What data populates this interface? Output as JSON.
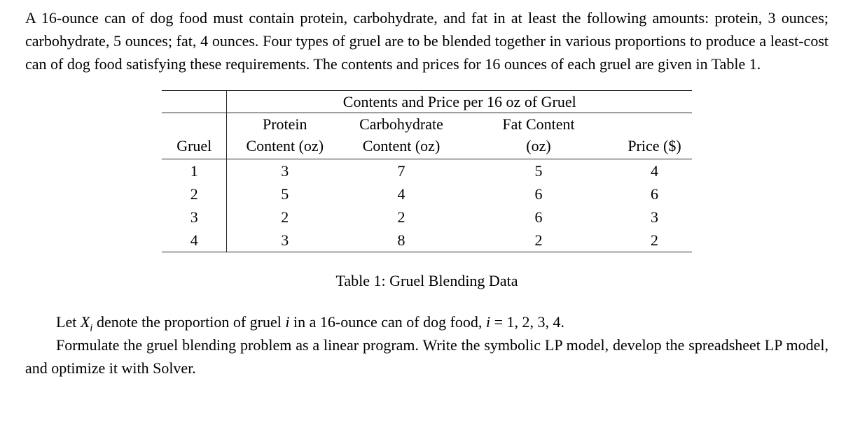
{
  "intro": "A 16-ounce can of dog food must contain protein, carbohydrate, and fat in at least the following amounts: protein, 3 ounces; carbohydrate, 5 ounces; fat, 4 ounces. Four types of gruel are to be blended together in various proportions to produce a least-cost can of dog food satisfying these requirements. The contents and prices for 16 ounces of each gruel are given in Table 1.",
  "table": {
    "span_header": "Contents and Price per 16 oz of Gruel",
    "columns": [
      {
        "line1": "",
        "line2": "Gruel"
      },
      {
        "line1": "Protein",
        "line2": "Content (oz)"
      },
      {
        "line1": "Carbohydrate",
        "line2": "Content (oz)"
      },
      {
        "line1": "Fat Content",
        "line2": "(oz)"
      },
      {
        "line1": "",
        "line2": "Price ($)"
      }
    ],
    "rows": [
      [
        "1",
        "3",
        "7",
        "5",
        "4"
      ],
      [
        "2",
        "5",
        "4",
        "6",
        "6"
      ],
      [
        "3",
        "2",
        "2",
        "6",
        "3"
      ],
      [
        "4",
        "3",
        "8",
        "2",
        "2"
      ]
    ],
    "caption": "Table 1: Gruel Blending Data"
  },
  "closing": {
    "let_parts": [
      {
        "t": "Let ",
        "s": "n"
      },
      {
        "t": "X",
        "s": "it"
      },
      {
        "t": "i",
        "s": "sub"
      },
      {
        "t": " denote the proportion of gruel ",
        "s": "n"
      },
      {
        "t": "i",
        "s": "it"
      },
      {
        "t": " in a 16-ounce can of dog food, ",
        "s": "n"
      },
      {
        "t": "i",
        "s": "it"
      },
      {
        "t": " = 1, 2, 3, 4.",
        "s": "n"
      }
    ],
    "formulate": "Formulate the gruel blending problem as a linear program. Write the symbolic LP model, develop the spreadsheet LP model, and optimize it with Solver."
  },
  "colors": {
    "text": "#000000",
    "rule": "#262626",
    "background": "#ffffff"
  }
}
